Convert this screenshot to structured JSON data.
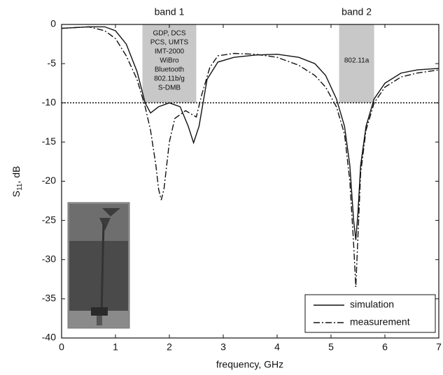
{
  "chart_data": {
    "type": "line",
    "xlabel": "frequency, GHz",
    "ylabel_main": "S",
    "ylabel_sub": "11",
    "ylabel_unit": ", dB",
    "xlim": [
      0,
      7
    ],
    "ylim": [
      -40,
      0
    ],
    "xticks": [
      0,
      1,
      2,
      3,
      4,
      5,
      6,
      7
    ],
    "yticks": [
      0,
      -5,
      -10,
      -15,
      -20,
      -25,
      -30,
      -35,
      -40
    ],
    "threshold": -10,
    "legend": "lower right",
    "bands": [
      {
        "label": "band 1",
        "range": [
          1.5,
          2.5
        ],
        "color": "#c8c8c8",
        "services": [
          "GDP, DCS",
          "PCS, UMTS",
          "IMT-2000",
          "WiBro",
          "Bluetooth",
          "802.11b/g",
          "S-DMB"
        ]
      },
      {
        "label": "band 2",
        "range": [
          5.15,
          5.8
        ],
        "color": "#c8c8c8",
        "services": [
          "802.11a"
        ]
      }
    ],
    "series": [
      {
        "name": "simulation",
        "color": "#111111",
        "dash": "solid",
        "x": [
          0,
          0.5,
          0.8,
          1.0,
          1.2,
          1.4,
          1.55,
          1.65,
          1.8,
          2.0,
          2.2,
          2.35,
          2.45,
          2.55,
          2.7,
          2.9,
          3.2,
          3.6,
          4.0,
          4.4,
          4.7,
          4.9,
          5.1,
          5.25,
          5.35,
          5.42,
          5.46,
          5.5,
          5.55,
          5.65,
          5.8,
          6.0,
          6.3,
          6.6,
          7.0
        ],
        "values": [
          -0.5,
          -0.3,
          -0.3,
          -0.8,
          -2.5,
          -6,
          -10,
          -11.3,
          -10.5,
          -10,
          -10.5,
          -13,
          -15.1,
          -13,
          -7,
          -4.8,
          -4.2,
          -3.9,
          -3.8,
          -4.2,
          -5,
          -6.5,
          -9.5,
          -13,
          -18,
          -25,
          -27.5,
          -24,
          -18,
          -13,
          -9.5,
          -7.5,
          -6.2,
          -5.8,
          -5.6
        ]
      },
      {
        "name": "measurement",
        "color": "#111111",
        "dash": "dashdot",
        "x": [
          0,
          0.5,
          0.8,
          1.0,
          1.2,
          1.4,
          1.55,
          1.65,
          1.75,
          1.8,
          1.85,
          1.9,
          2.0,
          2.1,
          2.3,
          2.5,
          2.6,
          2.75,
          2.9,
          3.2,
          3.6,
          4.0,
          4.4,
          4.7,
          4.9,
          5.1,
          5.25,
          5.35,
          5.42,
          5.46,
          5.5,
          5.55,
          5.65,
          5.8,
          6.0,
          6.3,
          6.6,
          7.0
        ],
        "values": [
          -0.5,
          -0.3,
          -0.8,
          -1.8,
          -4,
          -7,
          -10.5,
          -13.5,
          -18,
          -21,
          -22.4,
          -21,
          -15,
          -12,
          -11,
          -11.8,
          -9,
          -5.5,
          -4,
          -3.7,
          -3.8,
          -4.2,
          -5.2,
          -6.5,
          -8,
          -10.5,
          -14,
          -20,
          -28,
          -33.5,
          -27,
          -19,
          -13.5,
          -10,
          -8,
          -6.7,
          -6.2,
          -5.8
        ]
      }
    ]
  }
}
